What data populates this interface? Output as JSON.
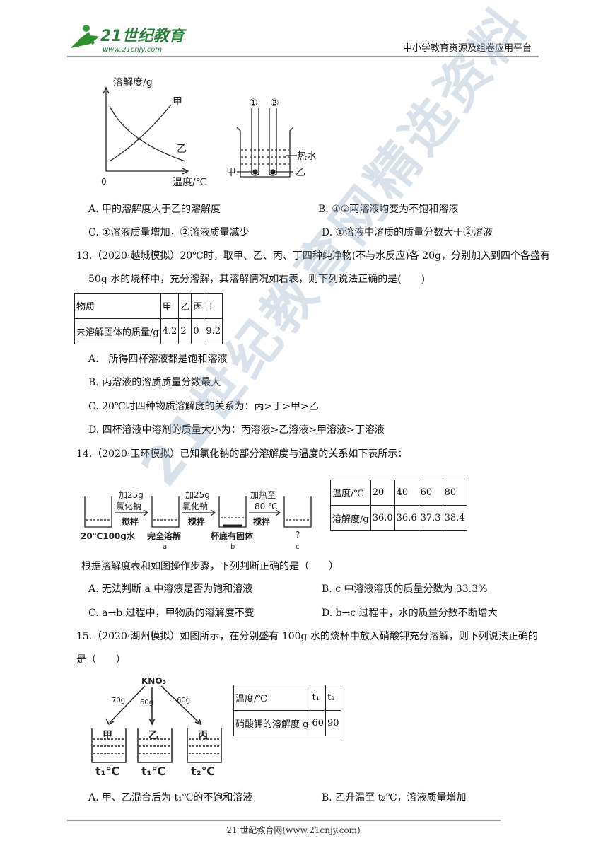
{
  "header": {
    "logo_text": "21世纪教育",
    "logo_url": "www.21cnjy.com",
    "platform": "中小学教育资源及组卷应用平台"
  },
  "watermark": "21世纪教育网精选资料",
  "q12": {
    "figure": {
      "y_label": "溶解度/g",
      "x_label": "温度/℃",
      "origin": "0",
      "curve_rising": "甲",
      "curve_falling": "乙",
      "tube1": "①",
      "tube2": "②",
      "hot_water": "热水",
      "left_label": "甲",
      "right_label": "乙"
    },
    "options": [
      "A. 甲的溶解度大于乙的溶解度",
      "B. ①②两溶液均变为不饱和溶液",
      "C. ①溶液质量增加，②溶液质量减少",
      "D. ①溶液中溶质的质量分数大于②溶液"
    ]
  },
  "q13": {
    "stem": "13.（2020·越城模拟）20℃时，取甲、乙、丙、丁四种纯净物(不与水反应)各 20g，分别加入到四个各盛有 50g 水的烧杯中，充分溶解，其溶解情况如右表，则下列说法正确的是(　　)",
    "table": {
      "rows": [
        [
          "物质",
          "甲",
          "乙",
          "丙",
          "丁"
        ],
        [
          "未溶解固体的质量/g",
          "4.2",
          "2",
          "0",
          "9.2"
        ]
      ]
    },
    "options": [
      "A.　所得四杯溶液都是饱和溶液",
      "B. 丙溶液的溶质质量分数最大",
      "C. 20℃时四种物质溶解度的关系为：丙>丁>甲>乙",
      "D. 四杯溶液中溶剂的质量大小为：丙溶液>乙溶液>甲溶液>丁溶液"
    ]
  },
  "q14": {
    "stem": "14.（2020·玉环模拟）已知氯化钠的部分溶解度与温度的关系如下表所示：",
    "figure": {
      "add1": "加25g",
      "salt1": "氯化钠",
      "stir1": "搅拌",
      "add2": "加25g",
      "salt2": "氯化钠",
      "stir2": "搅拌",
      "heat": "加热至",
      "temp": "80 ℃",
      "stir3": "搅拌",
      "start": "20℃100g水",
      "a_text": "完全溶解",
      "a": "a",
      "b_text": "杯底有固体",
      "b": "b",
      "c_text": "?",
      "c": "c"
    },
    "table": {
      "rows": [
        [
          "温度/℃",
          "20",
          "40",
          "60",
          "80"
        ],
        [
          "溶解度/g",
          "36.0",
          "36.6",
          "37.3",
          "38.4"
        ]
      ]
    },
    "prompt": "根据溶解度表和如图操作步骤，下列判断正确的是（　　）",
    "options": [
      "A. 无法判断 a 中溶液是否为饱和溶液",
      "B. c 中溶液溶质的质量分数为 33.3%",
      "C. a→b 过程中，甲物质的溶解度不变",
      "D. b→c 过程中，水的质量分数不断增大"
    ]
  },
  "q15": {
    "stem": "15.（2020·湖州模拟）如图所示，在分别盛有 100g 水的烧杯中放入硝酸钾充分溶解，则下列说法正确的是（　　）",
    "figure": {
      "top": "KNO₃",
      "m1": "70g",
      "m2": "60g",
      "m3": "60g",
      "b1": "甲",
      "b2": "乙",
      "b3": "丙",
      "t1": "t₁℃",
      "t2": "t₁℃",
      "t3": "t₂℃"
    },
    "table": {
      "rows": [
        [
          "温度/℃",
          "t₁",
          "t₂"
        ],
        [
          "硝酸钾的溶解度 g",
          "60",
          "90"
        ]
      ]
    },
    "options": [
      "A. 甲、乙混合后为 t₁℃的不饱和溶液",
      "B. 乙升温至 t₂℃，溶液质量增加"
    ]
  },
  "footer": "21 世纪教育网(www.21cnjy.com)"
}
